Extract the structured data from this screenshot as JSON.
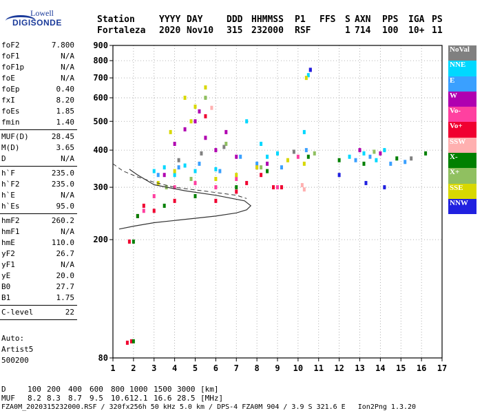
{
  "logo": {
    "line1": "Lowell",
    "line2": "DIGISONDE"
  },
  "header": {
    "labels": [
      "Station",
      "YYYY",
      "DAY",
      "DDD",
      "HHMMSS",
      "P1",
      "FFS",
      "S",
      "AXN",
      "PPS",
      "IGA",
      "PS"
    ],
    "values": [
      "Fortaleza",
      "2020",
      "Nov10",
      "315",
      "232000",
      "RSF",
      "",
      "1",
      "714",
      "100",
      "10+",
      "11"
    ]
  },
  "params": [
    {
      "name": "foF2",
      "value": "7.800"
    },
    {
      "name": "foF1",
      "value": "N/A"
    },
    {
      "name": "foF1p",
      "value": "N/A"
    },
    {
      "name": "foE",
      "value": "N/A"
    },
    {
      "name": "foEp",
      "value": "0.40"
    },
    {
      "name": "fxI",
      "value": "8.20"
    },
    {
      "name": "foEs",
      "value": "1.85"
    },
    {
      "name": "fmin",
      "value": "1.40"
    },
    {
      "sep": true
    },
    {
      "name": "MUF(D)",
      "value": "28.45"
    },
    {
      "name": "M(D)",
      "value": "3.65"
    },
    {
      "name": "D",
      "value": "N/A"
    },
    {
      "sep": true
    },
    {
      "name": "h`F",
      "value": "235.0"
    },
    {
      "name": "h`F2",
      "value": "235.0"
    },
    {
      "name": "h`E",
      "value": "N/A"
    },
    {
      "name": "h`Es",
      "value": "95.0"
    },
    {
      "sep": true
    },
    {
      "name": "hmF2",
      "value": "260.2"
    },
    {
      "name": "hmF1",
      "value": "N/A"
    },
    {
      "name": "hmE",
      "value": "110.0"
    },
    {
      "name": "yF2",
      "value": "26.7"
    },
    {
      "name": "yF1",
      "value": "N/A"
    },
    {
      "name": "yE",
      "value": "20.0"
    },
    {
      "name": "B0",
      "value": "27.7"
    },
    {
      "name": "B1",
      "value": "1.75"
    },
    {
      "sep": true
    },
    {
      "name": "C-level",
      "value": "22"
    },
    {
      "sep": true
    }
  ],
  "auto": {
    "line1": "Auto:",
    "line2": "Artist5",
    "line3": "500200"
  },
  "legend": [
    {
      "label": "NoVal",
      "color": "#808080"
    },
    {
      "label": "NNE",
      "color": "#00d8ff"
    },
    {
      "label": "E",
      "color": "#3aa0ff"
    },
    {
      "label": "W",
      "color": "#b000b0"
    },
    {
      "label": "Vo-",
      "color": "#ff40a0"
    },
    {
      "label": "Vo+",
      "color": "#f00030"
    },
    {
      "label": "SSW",
      "color": "#ffb0b0"
    },
    {
      "label": "X-",
      "color": "#008000"
    },
    {
      "label": "X+",
      "color": "#90c060"
    },
    {
      "label": "SSE",
      "color": "#d8d800"
    },
    {
      "label": "NNW",
      "color": "#2020e0"
    }
  ],
  "footer": {
    "d_label": "D",
    "d_values": [
      "100",
      "200",
      "400",
      "600",
      "800",
      "1000",
      "1500",
      "3000",
      "[km]"
    ],
    "muf_label": "MUF",
    "muf_values": [
      "8.2",
      "8.3",
      "8.7",
      "9.5",
      "10.6",
      "12.1",
      "16.6",
      "28.5",
      "[MHz]"
    ],
    "info": "FZA0M_2020315232000.RSF / 320fx256h 50 kHz 5.0 km / DPS-4 FZA0M 904 / 3.9 S 321.6 E   Ion2Png 1.3.20"
  },
  "chart_data": {
    "type": "scatter",
    "xlabel": "",
    "ylabel": "",
    "xlim": [
      1,
      17
    ],
    "ylim": [
      80,
      900
    ],
    "x_ticks": [
      "1",
      "2",
      "3",
      "4",
      "5",
      "6",
      "7",
      "8",
      "9",
      "10",
      "11",
      "12",
      "13",
      "14",
      "15",
      "16",
      "17"
    ],
    "y_ticks": [
      "80",
      "200",
      "300",
      "400",
      "500",
      "600",
      "700",
      "800",
      "900"
    ],
    "y_tick_values": [
      80,
      200,
      300,
      400,
      500,
      600,
      700,
      800,
      900
    ],
    "y_scale": "log",
    "grid": true,
    "series": [
      {
        "name": "NNE",
        "color": "#00d8ff",
        "x": [
          3.5,
          4.0,
          5.0,
          6.0,
          7.5,
          8.2,
          8.5,
          9.0,
          10.3,
          12.5,
          13.2,
          13.8,
          14.2,
          10.5,
          3.0,
          4.5
        ],
        "y": [
          350,
          330,
          340,
          345,
          500,
          420,
          380,
          390,
          460,
          380,
          390,
          370,
          400,
          715,
          340,
          355
        ]
      },
      {
        "name": "E",
        "color": "#3aa0ff",
        "x": [
          3.2,
          4.2,
          5.2,
          6.2,
          7.2,
          8.0,
          9.2,
          10.4,
          12.8,
          13.5,
          14.5,
          15.2
        ],
        "y": [
          330,
          350,
          360,
          340,
          380,
          360,
          350,
          400,
          370,
          380,
          360,
          365
        ]
      },
      {
        "name": "W",
        "color": "#b000b0",
        "x": [
          4.0,
          4.5,
          5.0,
          5.5,
          6.0,
          6.5,
          7.0,
          3.5,
          5.2,
          8.5,
          10.6,
          13.0,
          14.0
        ],
        "y": [
          420,
          470,
          500,
          440,
          400,
          460,
          380,
          330,
          540,
          360,
          745,
          400,
          390
        ]
      },
      {
        "name": "Vo-",
        "color": "#ff40a0",
        "x": [
          3.0,
          4.0,
          5.0,
          6.0,
          7.0,
          8.0,
          9.0,
          10.0,
          2.5
        ],
        "y": [
          280,
          300,
          310,
          300,
          320,
          350,
          300,
          380,
          250
        ]
      },
      {
        "name": "Vo+",
        "color": "#f00030",
        "x": [
          1.8,
          2.2,
          2.5,
          3.0,
          4.0,
          5.0,
          6.0,
          7.0,
          7.5,
          8.2,
          8.8,
          9.2,
          1.7,
          1.9,
          5.5
        ],
        "y": [
          197,
          240,
          260,
          250,
          270,
          280,
          270,
          290,
          310,
          330,
          300,
          300,
          90,
          91,
          520
        ]
      },
      {
        "name": "SSW",
        "color": "#ffb0b0",
        "x": [
          5.8,
          10.2,
          10.3
        ],
        "y": [
          555,
          305,
          295
        ]
      },
      {
        "name": "X-",
        "color": "#008000",
        "x": [
          2.0,
          2.2,
          3.5,
          5.0,
          7.0,
          8.5,
          10.5,
          12.0,
          13.2,
          14.8,
          16.2,
          2.0
        ],
        "y": [
          197,
          240,
          260,
          280,
          300,
          340,
          380,
          370,
          360,
          375,
          390,
          91
        ]
      },
      {
        "name": "X+",
        "color": "#90c060",
        "x": [
          3.6,
          4.8,
          5.5,
          6.5,
          8.2,
          10.8,
          13.7
        ],
        "y": [
          300,
          320,
          600,
          420,
          350,
          390,
          395
        ]
      },
      {
        "name": "SSE",
        "color": "#d8d800",
        "x": [
          3.2,
          4.0,
          4.5,
          5.0,
          5.5,
          6.0,
          7.0,
          8.0,
          9.5,
          10.3,
          3.8,
          4.8,
          10.4
        ],
        "y": [
          310,
          340,
          600,
          560,
          650,
          320,
          330,
          350,
          370,
          360,
          460,
          500,
          700
        ]
      },
      {
        "name": "NNW",
        "color": "#2020e0",
        "x": [
          10.6,
          12.0,
          13.3,
          14.2
        ],
        "y": [
          745,
          330,
          310,
          300
        ]
      },
      {
        "name": "NoVal",
        "color": "#808080",
        "x": [
          4.2,
          5.3,
          6.4,
          9.8,
          15.5
        ],
        "y": [
          370,
          390,
          410,
          395,
          375
        ]
      }
    ],
    "profile": {
      "x": [
        1.3,
        2,
        3,
        4,
        5,
        6,
        7,
        7.5,
        7.7,
        7.4,
        6,
        4.5,
        3,
        2.2,
        1.8
      ],
      "y": [
        217,
        222,
        228,
        232,
        236,
        240,
        246,
        252,
        260,
        270,
        282,
        292,
        306,
        330,
        345
      ]
    },
    "dashed": {
      "x": [
        1.0,
        1.5,
        2.2,
        3.0,
        4.0,
        5.0,
        6.0,
        7.0,
        7.5
      ],
      "y": [
        360,
        340,
        325,
        312,
        300,
        294,
        288,
        282,
        275
      ]
    }
  }
}
